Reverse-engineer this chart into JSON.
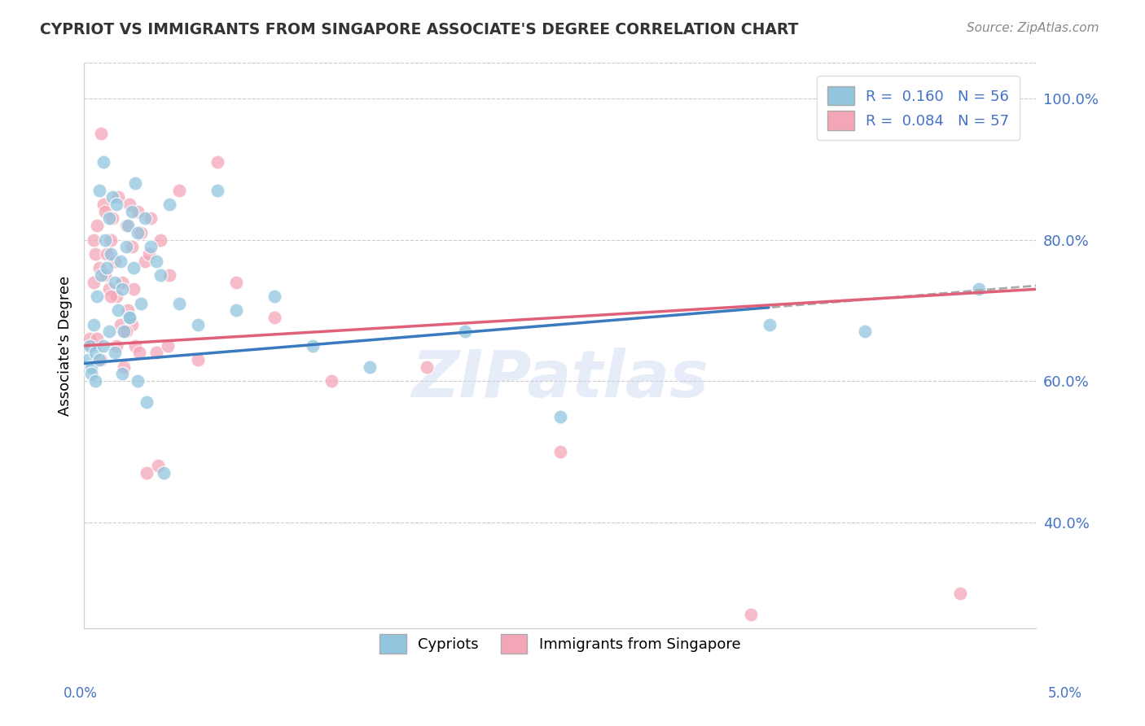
{
  "title": "CYPRIOT VS IMMIGRANTS FROM SINGAPORE ASSOCIATE'S DEGREE CORRELATION CHART",
  "source": "Source: ZipAtlas.com",
  "ylabel": "Associate's Degree",
  "xmin": 0.0,
  "xmax": 5.0,
  "ymin": 25.0,
  "ymax": 105.0,
  "yticks": [
    40.0,
    60.0,
    80.0,
    100.0
  ],
  "ytick_labels": [
    "40.0%",
    "60.0%",
    "80.0%",
    "100.0%"
  ],
  "blue_color": "#92c5de",
  "pink_color": "#f4a6b8",
  "blue_line_color": "#3a7abf",
  "pink_line_color": "#e0607a",
  "dash_color": "#aaaaaa",
  "watermark": "ZIPatlas",
  "blue_intercept": 62.5,
  "blue_slope": 2.2,
  "pink_intercept": 65.0,
  "pink_slope": 1.6,
  "blue_dash_start": 3.6,
  "blue_points_x": [
    0.02,
    0.03,
    0.04,
    0.05,
    0.06,
    0.07,
    0.08,
    0.09,
    0.1,
    0.11,
    0.12,
    0.13,
    0.14,
    0.15,
    0.16,
    0.17,
    0.18,
    0.19,
    0.2,
    0.21,
    0.22,
    0.23,
    0.24,
    0.25,
    0.26,
    0.27,
    0.28,
    0.3,
    0.32,
    0.35,
    0.38,
    0.4,
    0.45,
    0.5,
    0.6,
    0.7,
    0.8,
    1.0,
    1.2,
    1.5,
    2.0,
    2.5,
    3.6,
    4.1,
    4.7,
    0.04,
    0.06,
    0.08,
    0.1,
    0.13,
    0.16,
    0.2,
    0.24,
    0.28,
    0.33,
    0.42
  ],
  "blue_points_y": [
    63,
    65,
    62,
    68,
    64,
    72,
    87,
    75,
    91,
    80,
    76,
    83,
    78,
    86,
    74,
    85,
    70,
    77,
    73,
    67,
    79,
    82,
    69,
    84,
    76,
    88,
    81,
    71,
    83,
    79,
    77,
    75,
    85,
    71,
    68,
    87,
    70,
    72,
    65,
    62,
    67,
    55,
    68,
    67,
    73,
    61,
    60,
    63,
    65,
    67,
    64,
    61,
    69,
    60,
    57,
    47
  ],
  "pink_points_x": [
    0.03,
    0.04,
    0.05,
    0.06,
    0.07,
    0.08,
    0.09,
    0.1,
    0.11,
    0.12,
    0.13,
    0.14,
    0.15,
    0.16,
    0.17,
    0.18,
    0.19,
    0.2,
    0.21,
    0.22,
    0.23,
    0.24,
    0.25,
    0.26,
    0.27,
    0.28,
    0.3,
    0.32,
    0.35,
    0.38,
    0.4,
    0.45,
    0.5,
    0.6,
    0.7,
    0.8,
    1.0,
    1.3,
    1.8,
    2.5,
    3.5,
    4.0,
    4.6,
    0.05,
    0.07,
    0.09,
    0.11,
    0.14,
    0.17,
    0.21,
    0.25,
    0.29,
    0.34,
    0.39,
    0.44,
    0.33,
    0.22
  ],
  "pink_points_y": [
    66,
    65,
    80,
    78,
    82,
    76,
    95,
    85,
    84,
    78,
    73,
    80,
    83,
    77,
    72,
    86,
    68,
    74,
    67,
    82,
    70,
    85,
    79,
    73,
    65,
    84,
    81,
    77,
    83,
    64,
    80,
    75,
    87,
    63,
    91,
    74,
    69,
    60,
    62,
    50,
    27,
    97,
    30,
    74,
    66,
    63,
    75,
    72,
    65,
    62,
    68,
    64,
    78,
    48,
    65,
    47,
    67
  ]
}
